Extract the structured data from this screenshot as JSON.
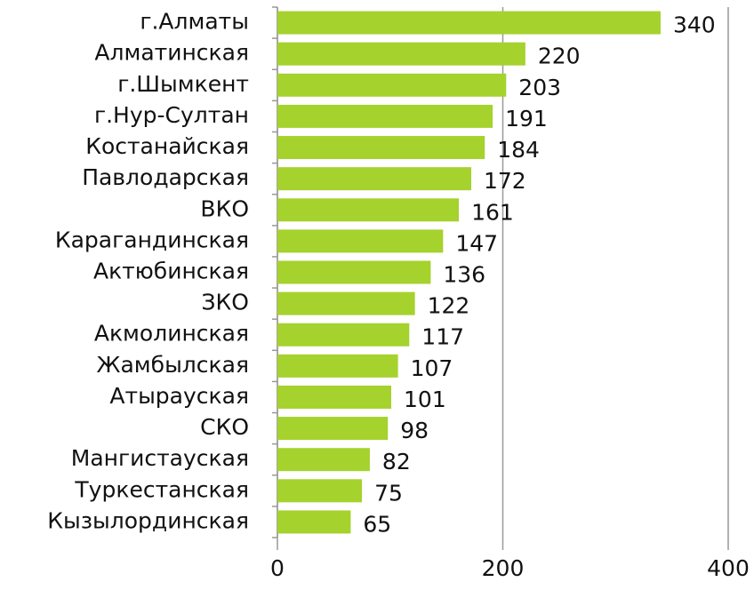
{
  "chart_data": {
    "type": "bar",
    "categories": [
      "г.Алматы",
      "Алматинская",
      "г.Шымкент",
      "г.Нур-Султан",
      "Костанайская",
      "Павлодарская",
      "ВКО",
      "Карагандинская",
      "Актюбинская",
      "ЗКО",
      "Акмолинская",
      "Жамбылская",
      "Атырауская",
      "СКО",
      "Мангистауская",
      "Туркестанская",
      "Кызылординская"
    ],
    "values": [
      340,
      220,
      203,
      191,
      184,
      172,
      161,
      147,
      136,
      122,
      117,
      107,
      101,
      98,
      82,
      75,
      65
    ],
    "color": "#a5d22d",
    "xlim": [
      0,
      400
    ],
    "xticks": [
      0,
      200,
      400
    ],
    "grid": true
  }
}
